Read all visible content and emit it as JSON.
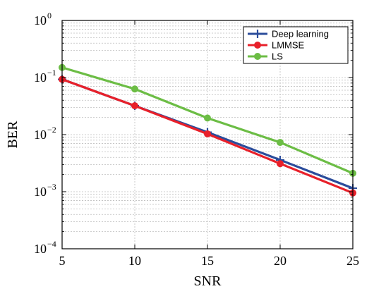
{
  "chart_data": {
    "type": "line",
    "xlabel": "SNR",
    "ylabel": "BER",
    "x": [
      5,
      10,
      15,
      20,
      25
    ],
    "xlim": [
      5,
      25
    ],
    "x_ticks": [
      "5",
      "10",
      "15",
      "20",
      "25"
    ],
    "ylim": [
      0.0001,
      1
    ],
    "y_scale": "log",
    "y_ticks": [
      {
        "base": "10",
        "exp": "0"
      },
      {
        "base": "10",
        "exp": "−1"
      },
      {
        "base": "10",
        "exp": "−2"
      },
      {
        "base": "10",
        "exp": "−3"
      },
      {
        "base": "10",
        "exp": "−4"
      }
    ],
    "grid": true,
    "legend_position": "top-right",
    "series": [
      {
        "name": "Deep learning",
        "color": "#2b4c9b",
        "marker": "plus",
        "values": [
          0.093,
          0.032,
          0.011,
          0.0036,
          0.00115
        ]
      },
      {
        "name": "LMMSE",
        "color": "#e8202a",
        "marker": "circle",
        "values": [
          0.093,
          0.032,
          0.0103,
          0.0031,
          0.00095
        ]
      },
      {
        "name": "LS",
        "color": "#6cbd45",
        "marker": "circle",
        "values": [
          0.15,
          0.063,
          0.0195,
          0.0073,
          0.0021
        ]
      }
    ]
  }
}
